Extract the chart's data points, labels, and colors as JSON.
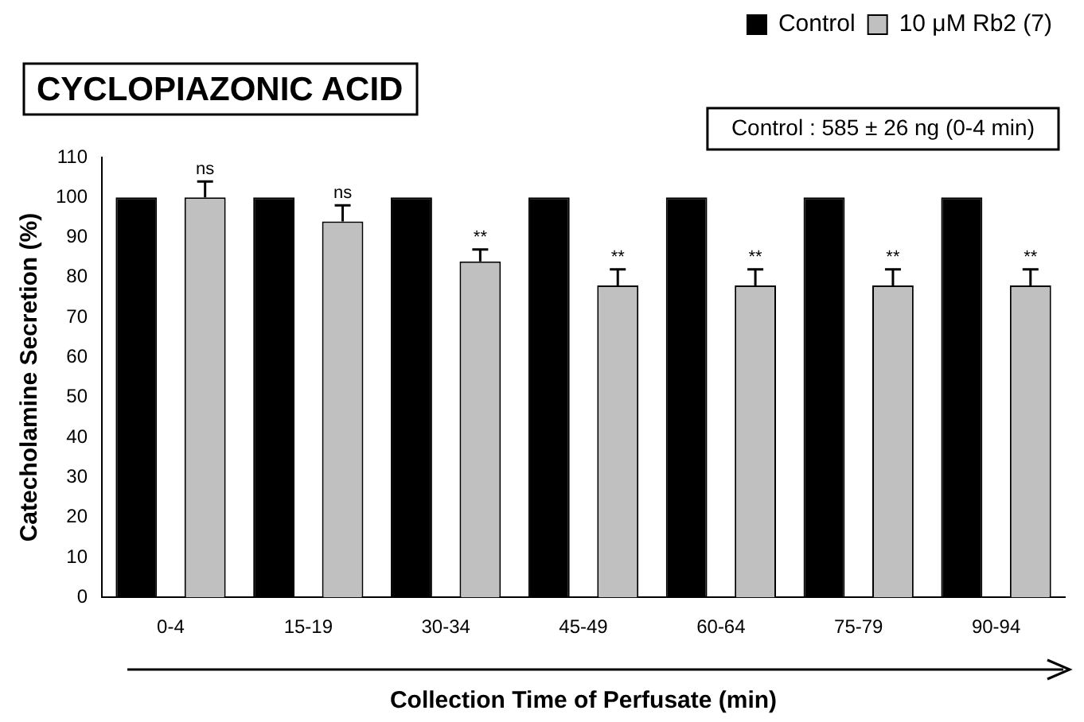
{
  "chart_data": {
    "type": "bar",
    "title": "CYCLOPIAZONIC ACID",
    "xlabel": "Collection Time of Perfusate (min)",
    "ylabel": "Catecholamine Secretion (%)",
    "categories": [
      "0-4",
      "15-19",
      "30-34",
      "45-49",
      "60-64",
      "75-79",
      "90-94"
    ],
    "series": [
      {
        "name": "Control",
        "color": "#000000",
        "values": [
          100,
          100,
          100,
          100,
          100,
          100,
          100
        ]
      },
      {
        "name": "10 μM Rb2 (7)",
        "color": "#c0c0c0",
        "values": [
          100,
          94,
          84,
          78,
          78,
          78,
          78
        ],
        "errors": [
          [
            100,
            104
          ],
          [
            94,
            98
          ],
          [
            84,
            87
          ],
          [
            78,
            82
          ],
          [
            78,
            82
          ],
          [
            78,
            82
          ],
          [
            78,
            82
          ]
        ]
      }
    ],
    "ylim": [
      0,
      110
    ],
    "yticks": [
      0,
      10,
      20,
      30,
      40,
      50,
      60,
      70,
      80,
      90,
      100,
      110
    ],
    "grid": false,
    "legend": "top right",
    "annotations": [
      "Control : 585 ± 26 ng (0-4 min)",
      "ns",
      "ns",
      "**",
      "**",
      "**",
      "**",
      "**"
    ]
  }
}
